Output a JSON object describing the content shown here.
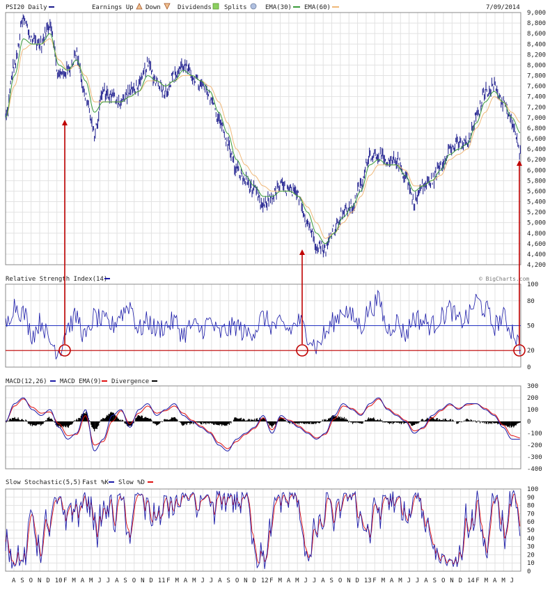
{
  "header": {
    "symbol": "PSI20 Daily",
    "earnings_label": "Earnings Up",
    "earnings_down_label": "Down",
    "dividends_label": "Dividends",
    "splits_label": "Splits",
    "ema30_label": "EMA(30)",
    "ema60_label": "EMA(60)",
    "date": "7/09/2014"
  },
  "watermark": "© BigCharts.com",
  "colors": {
    "price": "#1a1a8c",
    "ema30": "#3a9b3a",
    "ema60": "#f0b878",
    "rsi": "#1a1aa8",
    "macd": "#1a1aa8",
    "macd_signal": "#e01010",
    "divergence": "#000000",
    "stoch_fast": "#1a1aa8",
    "stoch_slow": "#e01010",
    "annotation": "#c00000"
  },
  "chart_data": [
    {
      "type": "line",
      "panel": "price",
      "ylim": [
        4200,
        9000
      ],
      "yticks": [
        4200,
        4400,
        4600,
        4800,
        5000,
        5200,
        5400,
        5600,
        5800,
        6000,
        6200,
        6400,
        6600,
        6800,
        7000,
        7200,
        7400,
        7600,
        7800,
        8000,
        8200,
        8400,
        8600,
        8800,
        9000
      ],
      "ytick_labels": [
        "4,200",
        "4,400",
        "4,600",
        "4,800",
        "5,000",
        "5,200",
        "5,400",
        "5,600",
        "5,800",
        "6,000",
        "6,200",
        "6,400",
        "6,600",
        "6,800",
        "7,000",
        "7,200",
        "7,400",
        "7,600",
        "7,800",
        "8,000",
        "8,200",
        "8,400",
        "8,600",
        "8,800",
        "9,000"
      ],
      "x_months": [
        "A",
        "S",
        "O",
        "N",
        "D",
        "10",
        "F",
        "M",
        "A",
        "M",
        "J",
        "J",
        "A",
        "S",
        "O",
        "N",
        "D",
        "11",
        "F",
        "M",
        "A",
        "M",
        "J",
        "J",
        "A",
        "S",
        "O",
        "N",
        "D",
        "12",
        "F",
        "M",
        "A",
        "M",
        "J",
        "J",
        "A",
        "S",
        "O",
        "N",
        "D",
        "13",
        "F",
        "M",
        "A",
        "M",
        "J",
        "J",
        "A",
        "S",
        "O",
        "N",
        "D",
        "14",
        "F",
        "M",
        "A",
        "M",
        "J"
      ],
      "price_keypoints": [
        7000,
        8000,
        8850,
        8500,
        8400,
        8800,
        7800,
        7900,
        8200,
        7400,
        6700,
        7500,
        7400,
        7300,
        7500,
        7600,
        8000,
        7700,
        7500,
        7800,
        8000,
        7800,
        7600,
        7400,
        7000,
        6500,
        6000,
        5800,
        5600,
        5300,
        5500,
        5700,
        5600,
        5500,
        5000,
        4600,
        4500,
        4900,
        5200,
        5300,
        5700,
        6300,
        6300,
        6100,
        6200,
        5900,
        5400,
        5700,
        5800,
        6100,
        6400,
        6500,
        6500,
        7000,
        7500,
        7600,
        7300,
        6900,
        6300
      ],
      "ema30_keypoints": [
        7000,
        7800,
        8500,
        8400,
        8400,
        8600,
        8000,
        7900,
        8100,
        7700,
        7100,
        7300,
        7300,
        7300,
        7400,
        7500,
        7800,
        7700,
        7600,
        7700,
        7900,
        7800,
        7700,
        7500,
        7100,
        6700,
        6200,
        5900,
        5700,
        5500,
        5500,
        5600,
        5600,
        5500,
        5200,
        4800,
        4600,
        4800,
        5100,
        5300,
        5600,
        6100,
        6200,
        6100,
        6100,
        5900,
        5600,
        5700,
        5800,
        6000,
        6300,
        6400,
        6500,
        6900,
        7300,
        7500,
        7300,
        7000,
        6700
      ],
      "ema60_keypoints": [
        7000,
        7600,
        8300,
        8400,
        8400,
        8500,
        8100,
        7900,
        8000,
        7800,
        7300,
        7300,
        7300,
        7300,
        7400,
        7500,
        7700,
        7700,
        7600,
        7700,
        7800,
        7800,
        7700,
        7600,
        7300,
        6900,
        6400,
        6100,
        5900,
        5700,
        5600,
        5600,
        5600,
        5500,
        5300,
        5000,
        4700,
        4800,
        5000,
        5200,
        5500,
        5900,
        6100,
        6100,
        6100,
        6000,
        5700,
        5700,
        5800,
        5900,
        6200,
        6300,
        6400,
        6800,
        7100,
        7400,
        7300,
        7100,
        6900
      ]
    },
    {
      "type": "line",
      "panel": "rsi",
      "title": "Relative Strength Index(14)",
      "ylim": [
        0,
        100
      ],
      "yticks": [
        0,
        20,
        50,
        80,
        100
      ],
      "ytick_labels": [
        "0",
        "20",
        "50",
        "80",
        "100"
      ],
      "reference_lines": [
        50,
        20
      ],
      "rsi_keypoints": [
        50,
        75,
        65,
        40,
        55,
        30,
        20,
        50,
        60,
        35,
        60,
        55,
        50,
        65,
        75,
        45,
        55,
        45,
        50,
        55,
        40,
        50,
        45,
        55,
        40,
        45,
        50,
        40,
        45,
        60,
        50,
        50,
        45,
        55,
        40,
        25,
        40,
        55,
        70,
        60,
        50,
        70,
        80,
        45,
        55,
        40,
        60,
        55,
        50,
        60,
        70,
        55,
        60,
        80,
        70,
        50,
        60,
        45,
        25
      ]
    },
    {
      "type": "line",
      "panel": "macd",
      "title": "MACD(12,26)",
      "series": [
        {
          "name": "MACD EMA(9)"
        },
        {
          "name": "Divergence"
        }
      ],
      "ylim": [
        -400,
        300
      ],
      "yticks": [
        -400,
        -300,
        -200,
        -100,
        0,
        100,
        200,
        300
      ],
      "ytick_labels": [
        "-400",
        "-300",
        "-200",
        "-100",
        "0",
        "100",
        "200",
        "300"
      ],
      "macd_keypoints": [
        0,
        150,
        200,
        100,
        50,
        100,
        -50,
        -150,
        -100,
        100,
        -250,
        -150,
        50,
        100,
        -50,
        100,
        150,
        50,
        100,
        150,
        50,
        0,
        -50,
        -100,
        -200,
        -250,
        -150,
        -100,
        -50,
        50,
        -100,
        50,
        0,
        -50,
        -100,
        -150,
        -100,
        50,
        150,
        100,
        50,
        150,
        200,
        100,
        50,
        0,
        -100,
        -50,
        50,
        100,
        150,
        100,
        150,
        150,
        100,
        50,
        -50,
        -150,
        -150
      ],
      "signal_keypoints": [
        0,
        130,
        190,
        120,
        70,
        80,
        -20,
        -120,
        -110,
        50,
        -200,
        -170,
        0,
        90,
        -20,
        70,
        130,
        70,
        90,
        130,
        70,
        10,
        -40,
        -90,
        -180,
        -230,
        -170,
        -110,
        -60,
        30,
        -70,
        30,
        10,
        -40,
        -90,
        -140,
        -110,
        20,
        130,
        110,
        60,
        130,
        190,
        110,
        60,
        10,
        -80,
        -60,
        30,
        90,
        140,
        110,
        140,
        150,
        110,
        60,
        -30,
        -120,
        -140
      ]
    },
    {
      "type": "line",
      "panel": "stochastic",
      "title": "Slow Stochastic(5,5)",
      "series": [
        {
          "name": "Fast %K"
        },
        {
          "name": "Slow %D"
        }
      ],
      "ylim": [
        0,
        100
      ],
      "yticks": [
        0,
        10,
        20,
        30,
        40,
        50,
        60,
        70,
        80,
        90,
        100
      ],
      "ytick_labels": [
        "0",
        "10",
        "20",
        "30",
        "40",
        "50",
        "60",
        "70",
        "80",
        "90",
        "100"
      ]
    }
  ]
}
